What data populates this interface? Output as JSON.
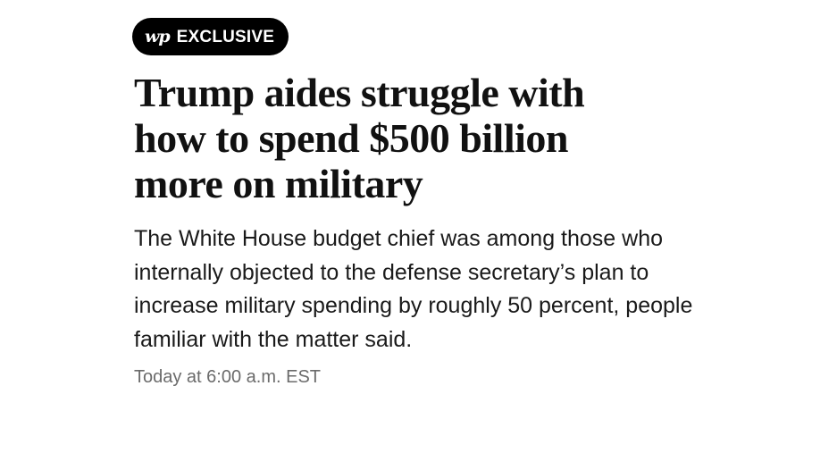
{
  "badge": {
    "logo": "wp",
    "label": "EXCLUSIVE"
  },
  "article": {
    "headline": "Trump aides struggle with how to spend $500 billion more on military",
    "dek": "The White House budget chief was among those who internally objected to the defense secretary’s plan to increase military spending by roughly 50 percent, people familiar with the matter said.",
    "timestamp": "Today at 6:00 a.m. EST"
  }
}
